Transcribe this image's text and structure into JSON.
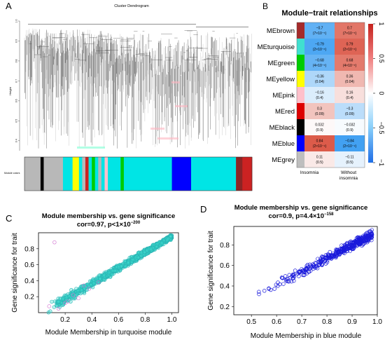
{
  "panels": {
    "A": {
      "letter": "A",
      "title": "Cluster Dendrogram",
      "ylabel": "Height",
      "yticks": [
        "1.0",
        "0.9",
        "0.8",
        "0.7",
        "0.6",
        "0.5",
        "0.4"
      ],
      "colors_label": "Module colors",
      "module_colors_bar": [
        {
          "color": "#b8b8b8",
          "width": 5
        },
        {
          "color": "#000000",
          "width": 1
        },
        {
          "color": "#b8b8b8",
          "width": 6
        },
        {
          "color": "#00e5e5",
          "width": 3
        },
        {
          "color": "#ffff00",
          "width": 2
        },
        {
          "color": "#00e5e5",
          "width": 1
        },
        {
          "color": "#b8b8b8",
          "width": 1
        },
        {
          "color": "#cc2222",
          "width": 1
        },
        {
          "color": "#00e5e5",
          "width": 1
        },
        {
          "color": "#00cc00",
          "width": 1
        },
        {
          "color": "#00e5e5",
          "width": 1
        },
        {
          "color": "#b8b8b8",
          "width": 1
        },
        {
          "color": "#00e5e5",
          "width": 1
        },
        {
          "color": "#ffc0cb",
          "width": 1
        },
        {
          "color": "#00e5e5",
          "width": 4
        },
        {
          "color": "#00cc00",
          "width": 1
        },
        {
          "color": "#00e5e5",
          "width": 15
        },
        {
          "color": "#0000ff",
          "width": 6
        },
        {
          "color": "#00e5e5",
          "width": 14
        },
        {
          "color": "#8b2525",
          "width": 2
        },
        {
          "color": "#cc2222",
          "width": 3
        }
      ]
    },
    "B": {
      "letter": "B",
      "title": "Module−trait relationships",
      "columns": [
        "Insomnia",
        "Without insomnia"
      ],
      "rows": [
        {
          "module": "MEbrown",
          "color": "#a52a2a",
          "cells": [
            {
              "r": "−0.7",
              "p": "(7×10⁻⁵)",
              "v": -0.7
            },
            {
              "r": "0.7",
              "p": "(7×10⁻⁵)",
              "v": 0.7
            }
          ]
        },
        {
          "module": "MEturquoise",
          "color": "#40e0d0",
          "cells": [
            {
              "r": "−0.79",
              "p": "(2×10⁻⁶)",
              "v": -0.79
            },
            {
              "r": "0.79",
              "p": "(2×10⁻⁶)",
              "v": 0.79
            }
          ]
        },
        {
          "module": "MEgreen",
          "color": "#00cc00",
          "cells": [
            {
              "r": "−0.68",
              "p": "(4×10⁻⁵)",
              "v": -0.68
            },
            {
              "r": "0.68",
              "p": "(4×10⁻⁵)",
              "v": 0.68
            }
          ]
        },
        {
          "module": "MEyellow",
          "color": "#ffff00",
          "cells": [
            {
              "r": "−0.36",
              "p": "(0.04)",
              "v": -0.36
            },
            {
              "r": "0.36",
              "p": "(0.04)",
              "v": 0.36
            }
          ]
        },
        {
          "module": "MEpink",
          "color": "#ffc0cb",
          "cells": [
            {
              "r": "−0.16",
              "p": "(0.4)",
              "v": -0.16
            },
            {
              "r": "0.16",
              "p": "(0.4)",
              "v": 0.16
            }
          ]
        },
        {
          "module": "MEred",
          "color": "#dd0000",
          "cells": [
            {
              "r": "0.3",
              "p": "(0.09)",
              "v": 0.3
            },
            {
              "r": "−0.3",
              "p": "(0.09)",
              "v": -0.3
            }
          ]
        },
        {
          "module": "MEblack",
          "color": "#000000",
          "cells": [
            {
              "r": "0.032",
              "p": "(0.9)",
              "v": 0.032
            },
            {
              "r": "−0.032",
              "p": "(0.9)",
              "v": -0.032
            }
          ]
        },
        {
          "module": "MEblue",
          "color": "#0000ff",
          "cells": [
            {
              "r": "0.84",
              "p": "(2×10⁻⁹)",
              "v": 0.84
            },
            {
              "r": "−0.84",
              "p": "(2×10⁻⁹)",
              "v": -0.84
            }
          ]
        },
        {
          "module": "MEgrey",
          "color": "#bebebe",
          "cells": [
            {
              "r": "0.11",
              "p": "(0.5)",
              "v": 0.11
            },
            {
              "r": "−0.11",
              "p": "(0.5)",
              "v": -0.11
            }
          ]
        }
      ],
      "colorbar_ticks": [
        {
          "value": 1,
          "label": "1"
        },
        {
          "value": 0.5,
          "label": "0.5"
        },
        {
          "value": 0,
          "label": "0"
        },
        {
          "value": -0.5,
          "label": "−0.5"
        },
        {
          "value": -1,
          "label": "−1"
        }
      ]
    },
    "C": {
      "letter": "C",
      "title_line1": "Module membership vs. gene significance",
      "title_line2": "cor=0.97, p<1×10",
      "title_exp": "−200",
      "xlabel": "Module Membership in turquoise module",
      "ylabel": "Gene significance for trait",
      "xticks": [
        "0.2",
        "0.4",
        "0.6",
        "0.8",
        "1.0"
      ],
      "yticks": [
        "0.2",
        "0.4",
        "0.6",
        "0.8"
      ]
    },
    "D": {
      "letter": "D",
      "title_line1": "Module membership vs. gene significance",
      "title_line2": "cor=0.9, p=4.4×10",
      "title_exp": "−158",
      "xlabel": "Module Membership in blue module",
      "ylabel": "Gene significance for trait",
      "xticks": [
        "0.5",
        "0.6",
        "0.7",
        "0.8",
        "0.9",
        "1.0"
      ],
      "yticks": [
        "0.2",
        "0.4",
        "0.6",
        "0.8"
      ]
    }
  },
  "chart_data": [
    {
      "type": "dendrogram",
      "title": "Cluster Dendrogram",
      "ylabel": "Height",
      "ylim": [
        0.35,
        1.0
      ]
    },
    {
      "type": "heatmap",
      "title": "Module−trait relationships",
      "x_categories": [
        "Insomnia",
        "Without insomnia"
      ],
      "y_categories": [
        "MEbrown",
        "MEturquoise",
        "MEgreen",
        "MEyellow",
        "MEpink",
        "MEred",
        "MEblack",
        "MEblue",
        "MEgrey"
      ],
      "values": [
        [
          -0.7,
          0.7
        ],
        [
          -0.79,
          0.79
        ],
        [
          -0.68,
          0.68
        ],
        [
          -0.36,
          0.36
        ],
        [
          -0.16,
          0.16
        ],
        [
          0.3,
          -0.3
        ],
        [
          0.032,
          -0.032
        ],
        [
          0.84,
          -0.84
        ],
        [
          0.11,
          -0.11
        ]
      ],
      "color_range": [
        -1,
        1
      ]
    },
    {
      "type": "scatter",
      "title": "Module membership vs. gene significance",
      "cor": 0.97,
      "xlabel": "Module Membership in turquoise module",
      "ylabel": "Gene significance for trait",
      "xlim": [
        0.0,
        1.05
      ],
      "ylim": [
        0.0,
        1.0
      ],
      "trend": {
        "x0": 0.05,
        "y0": 0.02,
        "x1": 1.0,
        "y1": 0.95,
        "spread": 0.07
      }
    },
    {
      "type": "scatter",
      "title": "Module membership vs. gene significance",
      "cor": 0.9,
      "xlabel": "Module Membership in blue module",
      "ylabel": "Gene significance for trait",
      "xlim": [
        0.43,
        1.0
      ],
      "ylim": [
        0.12,
        0.98
      ],
      "trend": {
        "x0": 0.45,
        "y0": 0.22,
        "x1": 0.98,
        "y1": 0.9,
        "spread": 0.06
      }
    }
  ]
}
